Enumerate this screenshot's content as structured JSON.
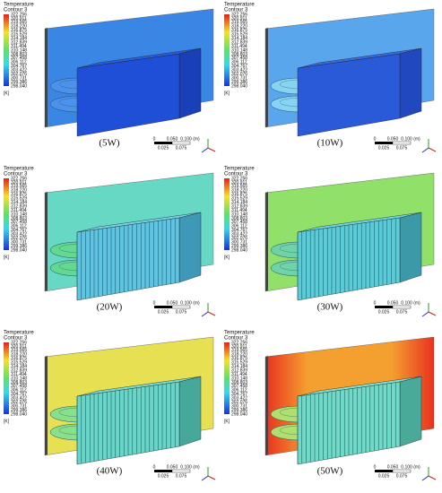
{
  "legend": {
    "title": "Temperature",
    "subtitle": "Contour 3",
    "unit": "[K]",
    "values": [
      "322.256",
      "320.911",
      "319.565",
      "318.220",
      "316.875",
      "315.529",
      "314.184",
      "312.839",
      "311.494",
      "310.148",
      "308.803",
      "307.458",
      "306.112",
      "304.767",
      "303.422",
      "302.076",
      "300.731",
      "299.386",
      "298.040"
    ]
  },
  "scale": {
    "top": [
      "0",
      "0.050",
      "0.100 (m)"
    ],
    "bottom": [
      "0.025",
      "0.075"
    ]
  },
  "panels": [
    {
      "caption": "(5W)"
    },
    {
      "caption": "(10W)"
    },
    {
      "caption": "(20W)"
    },
    {
      "caption": "(30W)"
    },
    {
      "caption": "(40W)"
    },
    {
      "caption": "(50W)"
    }
  ]
}
